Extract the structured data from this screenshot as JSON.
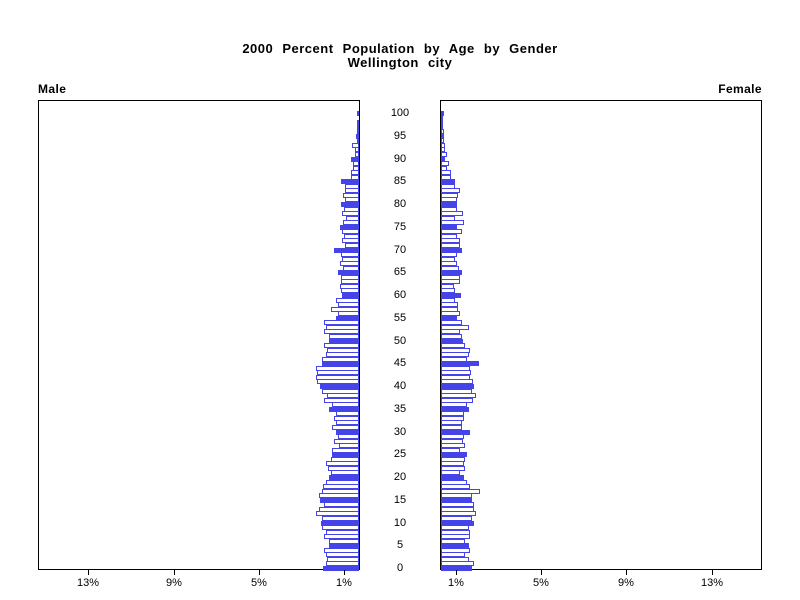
{
  "title": {
    "line1": "2000 Percent Population by Age by Gender",
    "line2": "Wellington city"
  },
  "left_label": "Male",
  "right_label": "Female",
  "axis": {
    "age_tick_labels": [
      0,
      5,
      10,
      15,
      20,
      25,
      30,
      35,
      40,
      45,
      50,
      55,
      60,
      65,
      70,
      75,
      80,
      85,
      90,
      95,
      100
    ],
    "percent_ticks": [
      1,
      5,
      9,
      13
    ],
    "percent_tick_labels": [
      "1%",
      "5%",
      "9%",
      "13%"
    ]
  },
  "colors": {
    "bar_outline": "#4444e8",
    "bar_solid_fill": "#4444e8",
    "bar_default_fill": "#ffffff",
    "axis": "#000000"
  },
  "chart_data": {
    "type": "bar",
    "subtype": "population-pyramid",
    "title": "2000 Percent Population by Age by Gender",
    "subtitle": "Wellington city",
    "unit": "percent",
    "age_min": 0,
    "age_max": 100,
    "xlim_each_side": [
      0,
      15
    ],
    "highlight_every_nth_age": 5,
    "legend_position": "none",
    "grid": false,
    "series": [
      {
        "name": "Male",
        "values": [
          1.69,
          1.55,
          1.5,
          1.55,
          1.64,
          1.41,
          1.41,
          1.64,
          1.55,
          1.74,
          1.78,
          1.74,
          2.02,
          1.88,
          1.64,
          1.83,
          1.88,
          1.74,
          1.69,
          1.55,
          1.41,
          1.31,
          1.46,
          1.55,
          1.31,
          1.27,
          1.27,
          0.94,
          1.17,
          0.99,
          1.08,
          1.27,
          1.08,
          1.17,
          1.08,
          1.41,
          1.27,
          1.64,
          1.5,
          1.74,
          1.83,
          1.97,
          2.02,
          1.97,
          2.02,
          1.74,
          1.74,
          1.55,
          1.5,
          1.64,
          1.41,
          1.41,
          1.64,
          1.55,
          1.64,
          1.08,
          0.99,
          1.31,
          0.99,
          1.08,
          0.8,
          0.85,
          0.89,
          0.85,
          0.85,
          0.99,
          0.75,
          0.89,
          0.8,
          0.85,
          1.17,
          0.66,
          0.8,
          0.7,
          0.8,
          0.89,
          0.75,
          0.61,
          0.8,
          0.7,
          0.85,
          0.66,
          0.75,
          0.66,
          0.66,
          0.85,
          0.38,
          0.38,
          0.28,
          0.28,
          0.38,
          0.19,
          0.19,
          0.33,
          0.09,
          0.14,
          0.09,
          0.05,
          0.05,
          0.0,
          0.05
        ]
      },
      {
        "name": "Female",
        "values": [
          1.46,
          1.55,
          1.31,
          1.13,
          1.36,
          1.31,
          1.13,
          1.36,
          1.36,
          1.31,
          1.55,
          1.46,
          1.64,
          1.55,
          1.55,
          1.46,
          1.46,
          1.83,
          1.36,
          1.22,
          1.08,
          0.89,
          1.13,
          1.08,
          1.13,
          1.22,
          0.89,
          1.13,
          1.03,
          1.08,
          1.36,
          0.99,
          0.99,
          1.08,
          1.08,
          1.31,
          1.22,
          1.5,
          1.64,
          1.46,
          1.55,
          1.5,
          1.36,
          1.41,
          1.36,
          1.78,
          1.22,
          1.31,
          1.36,
          1.13,
          1.03,
          0.99,
          0.89,
          1.31,
          0.99,
          0.75,
          0.89,
          0.8,
          0.8,
          0.66,
          0.94,
          0.66,
          0.61,
          0.89,
          0.89,
          0.99,
          0.85,
          0.75,
          0.66,
          0.75,
          0.99,
          0.89,
          0.89,
          0.75,
          0.99,
          0.75,
          1.08,
          0.66,
          1.03,
          0.75,
          0.75,
          0.75,
          0.8,
          0.89,
          0.66,
          0.66,
          0.47,
          0.47,
          0.28,
          0.38,
          0.19,
          0.28,
          0.19,
          0.19,
          0.14,
          0.14,
          0.14,
          0.05,
          0.05,
          0.05,
          0.14
        ]
      }
    ]
  }
}
